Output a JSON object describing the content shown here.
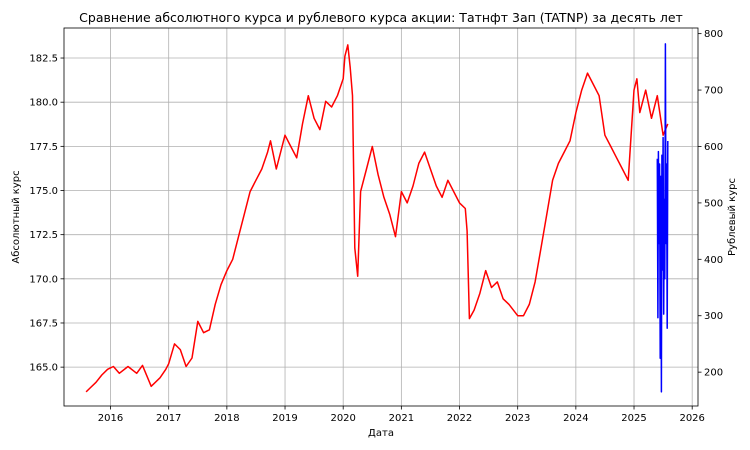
{
  "chart_data": {
    "type": "line",
    "title": "Сравнение абсолютного курса и рублевого курса акции: Татнфт 3ап (TATNP) за десять лет",
    "xlabel": "Дата",
    "ylabel_left": "Абсолютный курс",
    "ylabel_right": "Рублевый курс",
    "grid": true,
    "colors": {
      "left": "#0000ff",
      "right": "#ff0000"
    },
    "xlim": [
      2015.2,
      2026.1
    ],
    "x_ticks": [
      "2016",
      "2017",
      "2018",
      "2019",
      "2020",
      "2021",
      "2022",
      "2023",
      "2024",
      "2025",
      "2026"
    ],
    "y_left": {
      "ylim": [
        162.8,
        184.2
      ],
      "ticks": [
        "165.0",
        "167.5",
        "170.0",
        "172.5",
        "175.0",
        "177.5",
        "180.0",
        "182.5"
      ]
    },
    "y_right": {
      "ylim": [
        140,
        810
      ],
      "ticks": [
        "200",
        "300",
        "400",
        "500",
        "600",
        "700",
        "800"
      ]
    },
    "series": [
      {
        "axis": "right",
        "x": [
          2015.58,
          2015.65,
          2015.75,
          2015.85,
          2015.95,
          2016.05,
          2016.15,
          2016.3,
          2016.45,
          2016.55,
          2016.7,
          2016.85,
          2016.95,
          2017.0,
          2017.1,
          2017.2,
          2017.3,
          2017.4,
          2017.5,
          2017.6,
          2017.7,
          2017.8,
          2017.9,
          2018.0,
          2018.1,
          2018.2,
          2018.3,
          2018.4,
          2018.5,
          2018.6,
          2018.7,
          2018.75,
          2018.85,
          2019.0,
          2019.1,
          2019.2,
          2019.3,
          2019.4,
          2019.5,
          2019.6,
          2019.7,
          2019.8,
          2019.9,
          2020.0,
          2020.03,
          2020.08,
          2020.12,
          2020.16,
          2020.2,
          2020.25,
          2020.3,
          2020.4,
          2020.5,
          2020.6,
          2020.7,
          2020.8,
          2020.9,
          2021.0,
          2021.1,
          2021.2,
          2021.3,
          2021.4,
          2021.5,
          2021.6,
          2021.7,
          2021.8,
          2021.9,
          2022.0,
          2022.1,
          2022.13,
          2022.17,
          2022.25,
          2022.35,
          2022.45,
          2022.55,
          2022.65,
          2022.75,
          2022.85,
          2023.0,
          2023.1,
          2023.2,
          2023.3,
          2023.4,
          2023.5,
          2023.6,
          2023.7,
          2023.8,
          2023.9,
          2024.0,
          2024.1,
          2024.2,
          2024.3,
          2024.4,
          2024.5,
          2024.6,
          2024.7,
          2024.8,
          2024.9,
          2025.0,
          2025.05,
          2025.1,
          2025.2,
          2025.3,
          2025.4,
          2025.5,
          2025.58
        ],
        "values": [
          165,
          172,
          182,
          195,
          205,
          210,
          198,
          210,
          198,
          212,
          175,
          190,
          205,
          215,
          250,
          240,
          210,
          225,
          290,
          270,
          275,
          320,
          355,
          380,
          400,
          440,
          480,
          520,
          540,
          560,
          590,
          610,
          560,
          620,
          600,
          580,
          640,
          690,
          650,
          630,
          680,
          670,
          690,
          720,
          760,
          780,
          740,
          690,
          420,
          370,
          520,
          560,
          600,
          550,
          510,
          480,
          440,
          520,
          500,
          530,
          570,
          590,
          560,
          530,
          510,
          540,
          520,
          500,
          490,
          450,
          295,
          310,
          340,
          380,
          350,
          360,
          330,
          320,
          300,
          300,
          320,
          360,
          420,
          480,
          540,
          570,
          590,
          610,
          660,
          700,
          730,
          710,
          690,
          620,
          600,
          580,
          560,
          540,
          700,
          720,
          660,
          700,
          650,
          690,
          620,
          640
        ]
      },
      {
        "axis": "left",
        "x": [
          2025.4,
          2025.41,
          2025.42,
          2025.43,
          2025.44,
          2025.45,
          2025.46,
          2025.47,
          2025.48,
          2025.49,
          2025.5,
          2025.51,
          2025.52,
          2025.53,
          2025.54,
          2025.55,
          2025.56,
          2025.57,
          2025.58
        ],
        "values": [
          176.8,
          167.8,
          177.2,
          172.0,
          176.5,
          165.5,
          175.8,
          163.6,
          177.0,
          170.5,
          178.0,
          168.0,
          174.5,
          170.0,
          183.3,
          172.0,
          176.5,
          167.2,
          177.8
        ]
      }
    ]
  }
}
